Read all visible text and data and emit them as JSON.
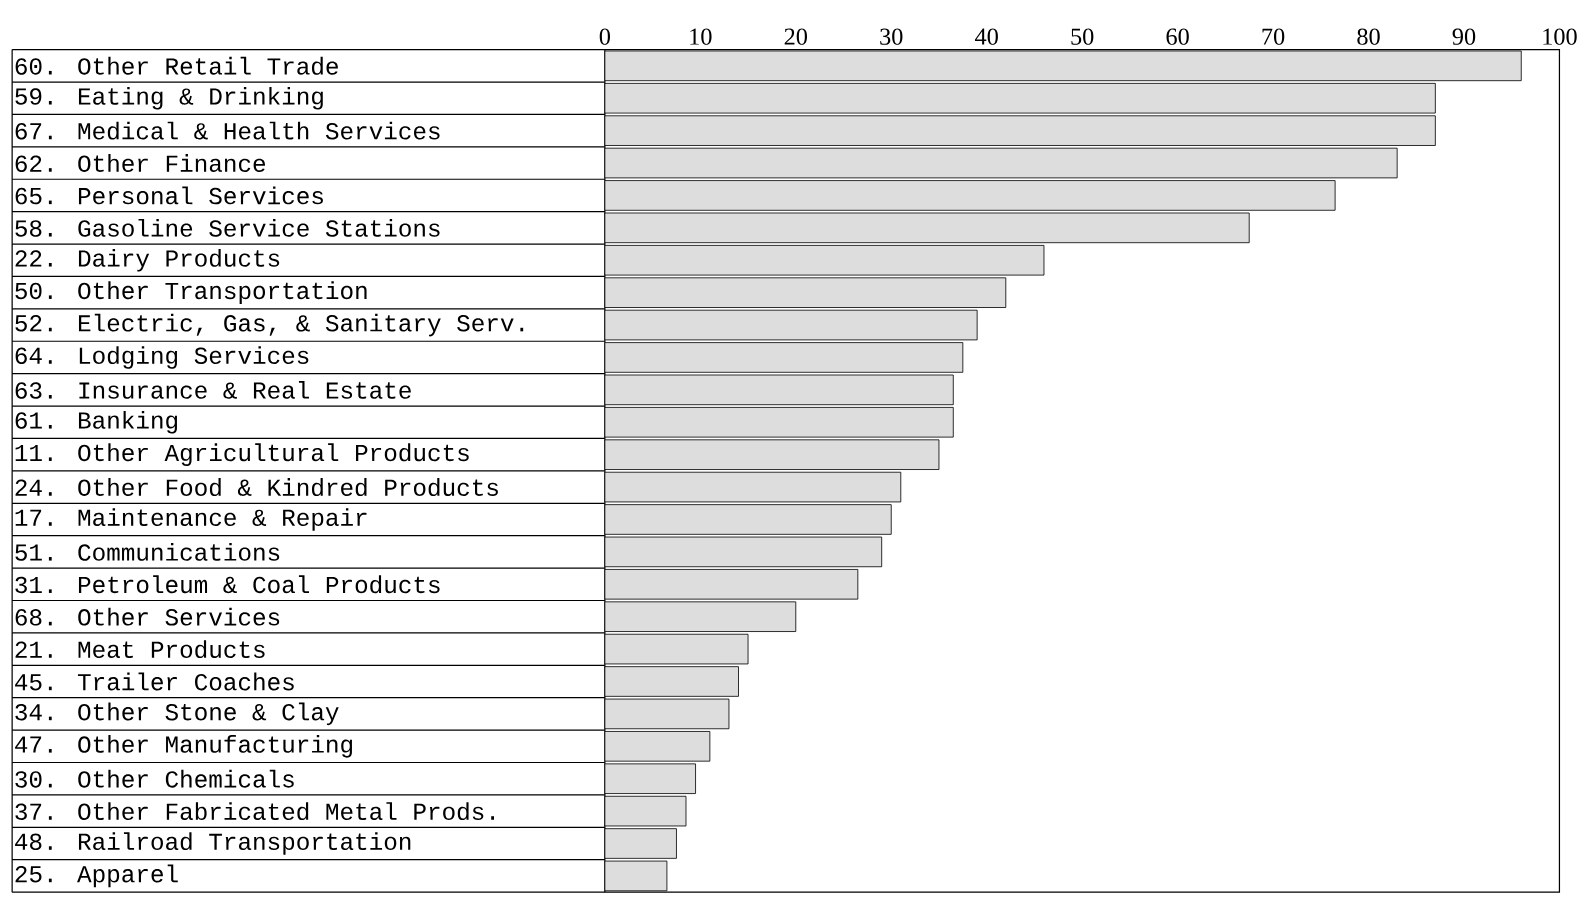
{
  "chart_data": {
    "type": "bar",
    "orientation": "horizontal",
    "categories": [
      "60. Other Retail Trade",
      "59. Eating & Drinking",
      "67. Medical & Health Services",
      "62. Other Finance",
      "65. Personal Services",
      "58. Gasoline Service Stations",
      "22. Dairy Products",
      "50. Other Transportation",
      "52. Electric, Gas, & Sanitary Serv.",
      "64. Lodging Services",
      "63. Insurance & Real Estate",
      "61. Banking",
      "11. Other Agricultural Products",
      "24. Other Food & Kindred Products",
      "17. Maintenance & Repair",
      "51. Communications",
      "31. Petroleum & Coal Products",
      "68. Other Services",
      "21. Meat Products",
      "45. Trailer Coaches",
      "34. Other Stone & Clay",
      "47. Other Manufacturing",
      "30. Other Chemicals",
      "37. Other Fabricated Metal Prods.",
      "48. Railroad Transportation",
      "25. Apparel"
    ],
    "values": [
      96,
      87,
      87,
      83,
      76.5,
      67.5,
      46,
      42,
      39,
      37.5,
      36.5,
      36.5,
      35,
      31,
      30,
      29,
      26.5,
      20,
      15,
      14,
      13,
      11,
      9.5,
      8.5,
      7.5,
      6.5
    ],
    "color": "#dddddd",
    "xlim": [
      0,
      100
    ],
    "xticks": [
      0,
      10,
      20,
      30,
      40,
      50,
      60,
      70,
      80,
      90,
      100
    ]
  }
}
